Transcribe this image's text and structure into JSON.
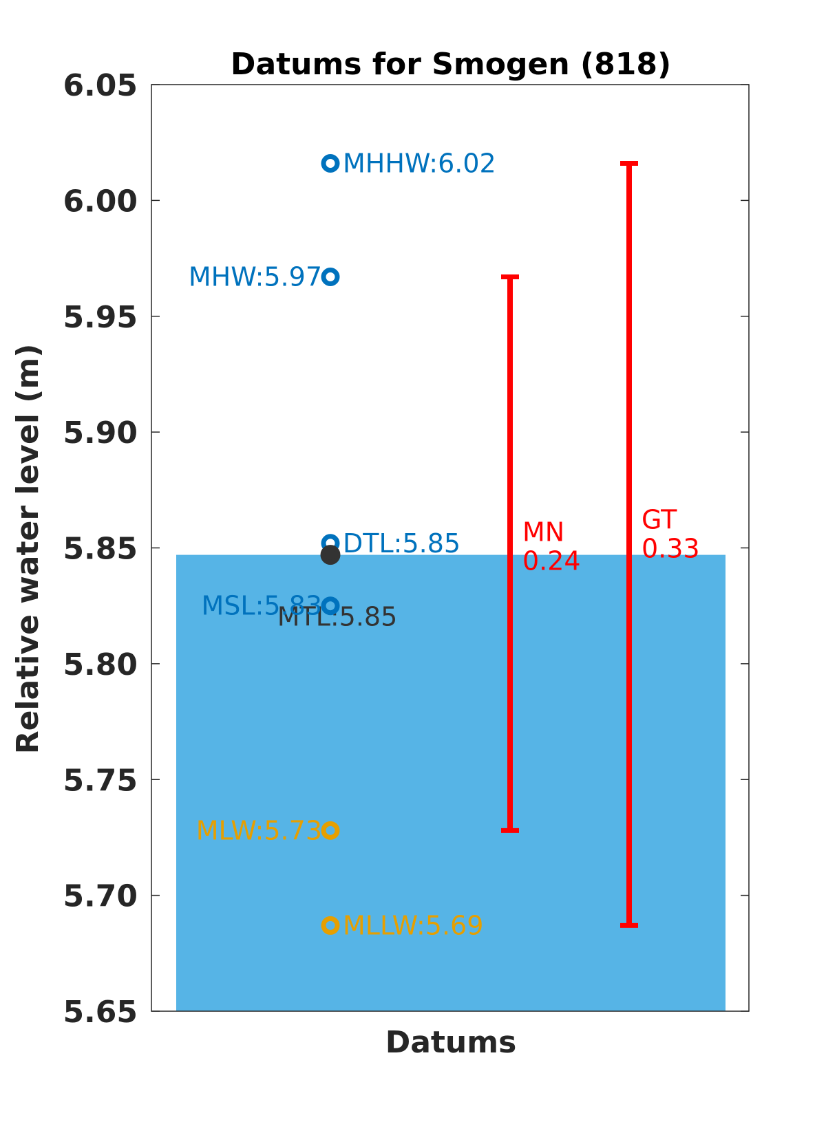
{
  "chart_data": {
    "type": "bar",
    "title": "Datums for Smogen (818)",
    "xlabel": "Datums",
    "ylabel": "Relative water level (m)",
    "ylim": [
      5.65,
      6.05
    ],
    "yticks": [
      "5.65",
      "5.70",
      "5.75",
      "5.80",
      "5.85",
      "5.90",
      "5.95",
      "6.00",
      "6.05"
    ],
    "grid": false,
    "bar": {
      "value": 5.847,
      "color": "#56b4e6"
    },
    "datums": [
      {
        "name": "MHHW",
        "label": "MHHW:6.02",
        "value": 6.016,
        "color": "#0072bd",
        "side": "right"
      },
      {
        "name": "MHW",
        "label": "MHW:5.97",
        "value": 5.967,
        "color": "#0072bd",
        "side": "left"
      },
      {
        "name": "DTL",
        "label": "DTL:5.85",
        "value": 5.852,
        "color": "#0072bd",
        "side": "right"
      },
      {
        "name": "MTL",
        "label": "MTL:5.85",
        "value": 5.847,
        "color": "#333333",
        "side": "below"
      },
      {
        "name": "MSL",
        "label": "MSL:5.83",
        "value": 5.825,
        "color": "#0072bd",
        "side": "left"
      },
      {
        "name": "MLW",
        "label": "MLW:5.73",
        "value": 5.728,
        "color": "#e69f00",
        "side": "left"
      },
      {
        "name": "MLLW",
        "label": "MLLW:5.69",
        "value": 5.687,
        "color": "#e69f00",
        "side": "right"
      }
    ],
    "ranges": [
      {
        "name": "MN",
        "value": "0.24",
        "low": 5.728,
        "high": 5.967,
        "color": "#ff0000"
      },
      {
        "name": "GT",
        "value": "0.33",
        "low": 5.687,
        "high": 6.016,
        "color": "#ff0000"
      }
    ]
  }
}
